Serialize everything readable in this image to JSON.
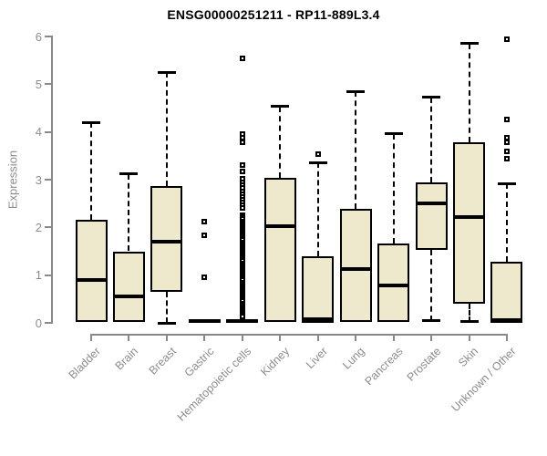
{
  "chart_data": {
    "type": "boxplot",
    "title": "ENSG00000251211 - RP11-889L3.4",
    "ylabel": "Expression",
    "xlabel": "",
    "ylim": [
      0,
      6
    ],
    "yticks": [
      0,
      1,
      2,
      3,
      4,
      5,
      6
    ],
    "grid": false,
    "legend": "none",
    "categories": [
      "Bladder",
      "Brain",
      "Breast",
      "Gastric",
      "Hematopoietic cells",
      "Kidney",
      "Liver",
      "Lung",
      "Pancreas",
      "Prostate",
      "Skin",
      "Unknown / Other"
    ],
    "series": [
      {
        "category": "Bladder",
        "whisker_low": 0,
        "q1": 0.02,
        "median": 0.9,
        "q3": 2.15,
        "whisker_high": 4.2,
        "outliers": []
      },
      {
        "category": "Brain",
        "whisker_low": 0,
        "q1": 0.02,
        "median": 0.55,
        "q3": 1.5,
        "whisker_high": 3.12,
        "outliers": []
      },
      {
        "category": "Breast",
        "whisker_low": 0,
        "q1": 0.65,
        "median": 1.7,
        "q3": 2.87,
        "whisker_high": 5.25,
        "outliers": []
      },
      {
        "category": "Gastric",
        "whisker_low": 0,
        "q1": 0,
        "median": 0.03,
        "q3": 0.08,
        "whisker_high": 0.08,
        "outliers": [
          2.13,
          1.83,
          0.96
        ]
      },
      {
        "category": "Hematopoietic cells",
        "whisker_low": 0,
        "q1": 0,
        "median": 0.03,
        "q3": 0.08,
        "whisker_high": 0.08,
        "outliers": [
          5.55,
          3.95,
          3.87,
          3.78,
          3.3,
          3.17,
          3.02,
          2.94,
          2.88,
          2.82,
          2.76,
          2.7,
          2.64,
          2.58,
          2.52,
          2.46,
          2.4,
          2.25,
          2.21,
          2.17,
          2.13,
          2.09,
          2.05,
          2.01,
          1.97,
          1.93,
          1.89,
          1.85,
          1.81,
          1.77,
          1.73,
          1.69,
          1.65,
          1.61,
          1.57,
          1.53,
          1.49,
          1.45,
          1.41,
          1.37,
          1.33,
          1.29,
          1.25,
          1.21,
          1.17,
          1.13,
          1.09,
          1.05,
          1.01,
          0.97,
          0.93,
          0.89,
          0.85,
          0.81,
          0.77,
          0.73,
          0.69,
          0.65,
          0.61,
          0.57,
          0.53,
          0.49,
          0.45,
          0.41,
          0.37,
          0.33,
          0.29,
          0.25,
          0.21,
          0.17,
          0.13
        ]
      },
      {
        "category": "Kidney",
        "whisker_low": 0,
        "q1": 0.02,
        "median": 2.02,
        "q3": 3.04,
        "whisker_high": 4.53,
        "outliers": []
      },
      {
        "category": "Liver",
        "whisker_low": 0,
        "q1": 0,
        "median": 0.07,
        "q3": 1.4,
        "whisker_high": 3.36,
        "outliers": [
          3.54
        ]
      },
      {
        "category": "Lung",
        "whisker_low": 0,
        "q1": 0.02,
        "median": 1.12,
        "q3": 2.39,
        "whisker_high": 4.85,
        "outliers": []
      },
      {
        "category": "Pancreas",
        "whisker_low": 0,
        "q1": 0.02,
        "median": 0.78,
        "q3": 1.66,
        "whisker_high": 3.96,
        "outliers": []
      },
      {
        "category": "Prostate",
        "whisker_low": 0.04,
        "q1": 1.53,
        "median": 2.5,
        "q3": 2.94,
        "whisker_high": 4.72,
        "outliers": []
      },
      {
        "category": "Skin",
        "whisker_low": 0.02,
        "q1": 0.4,
        "median": 2.22,
        "q3": 3.78,
        "whisker_high": 5.85,
        "outliers": []
      },
      {
        "category": "Unknown / Other",
        "whisker_low": 0,
        "q1": 0,
        "median": 0.05,
        "q3": 1.28,
        "whisker_high": 2.92,
        "outliers": [
          5.95,
          4.26,
          3.88,
          3.78,
          3.59,
          3.43
        ]
      }
    ],
    "colors": {
      "box_fill": "#EEE8CD",
      "box_border": "#000000",
      "median": "#000000",
      "whisker": "#000000",
      "axis": "#898989",
      "tick_label": "#8C8C8C",
      "title": "#000000",
      "background": "#FFFFFF"
    }
  }
}
